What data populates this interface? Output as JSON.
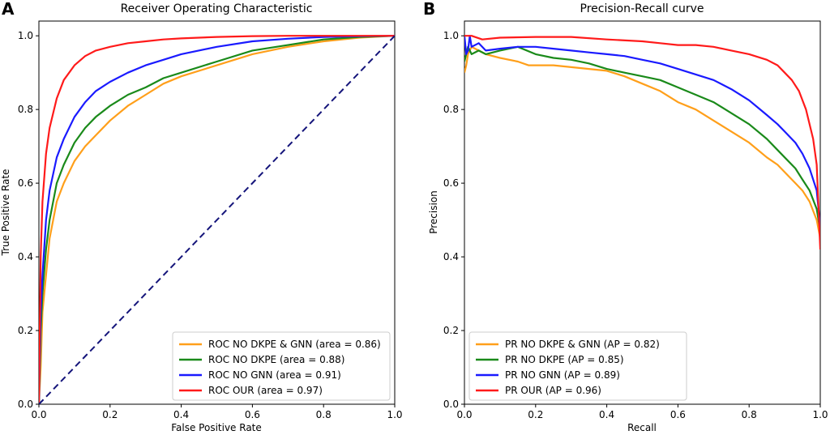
{
  "panels": [
    {
      "letter": "A",
      "title": "Receiver Operating Characteristic",
      "xlabel": "False Positive Rate",
      "ylabel": "True Positive Rate"
    },
    {
      "letter": "B",
      "title": "Precision-Recall curve",
      "xlabel": "Recall",
      "ylabel": "Precision"
    }
  ],
  "colors": {
    "orange": "#ff9f1a",
    "green": "#1a8a1a",
    "blue": "#1a1aff",
    "red": "#ff1a1a",
    "navy": "#14147a"
  },
  "chart_data": [
    {
      "type": "line",
      "title": "Receiver Operating Characteristic",
      "xlabel": "False Positive Rate",
      "ylabel": "True Positive Rate",
      "xlim": [
        0,
        1
      ],
      "ylim": [
        0,
        1.0
      ],
      "xticks": [
        "0.0",
        "0.2",
        "0.4",
        "0.6",
        "0.8",
        "1.0"
      ],
      "yticks": [
        "0.0",
        "0.2",
        "0.4",
        "0.6",
        "0.8",
        "1.0"
      ],
      "legend_position": "lower-right",
      "series": [
        {
          "name": "ROC NO DKPE & GNN (area = 0.86)",
          "color": "orange",
          "x": [
            0,
            0.005,
            0.01,
            0.02,
            0.03,
            0.05,
            0.07,
            0.1,
            0.13,
            0.16,
            0.2,
            0.25,
            0.3,
            0.35,
            0.4,
            0.5,
            0.6,
            0.7,
            0.8,
            0.9,
            1.0
          ],
          "y": [
            0,
            0.1,
            0.25,
            0.35,
            0.45,
            0.55,
            0.6,
            0.66,
            0.7,
            0.73,
            0.77,
            0.81,
            0.84,
            0.87,
            0.89,
            0.92,
            0.95,
            0.97,
            0.985,
            0.995,
            1.0
          ]
        },
        {
          "name": "ROC NO DKPE (area = 0.88)",
          "color": "green",
          "x": [
            0,
            0.005,
            0.01,
            0.02,
            0.03,
            0.05,
            0.07,
            0.1,
            0.13,
            0.16,
            0.2,
            0.25,
            0.3,
            0.35,
            0.4,
            0.5,
            0.6,
            0.7,
            0.8,
            0.9,
            1.0
          ],
          "y": [
            0,
            0.2,
            0.3,
            0.42,
            0.5,
            0.6,
            0.65,
            0.71,
            0.75,
            0.78,
            0.81,
            0.84,
            0.86,
            0.885,
            0.9,
            0.93,
            0.96,
            0.975,
            0.99,
            0.997,
            1.0
          ]
        },
        {
          "name": "ROC NO GNN (area = 0.91)",
          "color": "blue",
          "x": [
            0,
            0.005,
            0.01,
            0.02,
            0.03,
            0.05,
            0.07,
            0.1,
            0.13,
            0.16,
            0.2,
            0.25,
            0.3,
            0.35,
            0.4,
            0.5,
            0.6,
            0.7,
            0.8,
            0.9,
            1.0
          ],
          "y": [
            0,
            0.25,
            0.35,
            0.5,
            0.58,
            0.67,
            0.72,
            0.78,
            0.82,
            0.85,
            0.875,
            0.9,
            0.92,
            0.935,
            0.95,
            0.97,
            0.985,
            0.992,
            0.997,
            0.999,
            1.0
          ]
        },
        {
          "name": "ROC OUR (area = 0.97)",
          "color": "red",
          "x": [
            0,
            0.005,
            0.01,
            0.02,
            0.03,
            0.05,
            0.07,
            0.1,
            0.13,
            0.16,
            0.2,
            0.25,
            0.3,
            0.35,
            0.4,
            0.5,
            0.6,
            0.7,
            0.8,
            0.9,
            1.0
          ],
          "y": [
            0,
            0.4,
            0.55,
            0.68,
            0.75,
            0.83,
            0.88,
            0.92,
            0.945,
            0.96,
            0.97,
            0.98,
            0.985,
            0.99,
            0.993,
            0.997,
            0.999,
            1.0,
            1.0,
            1.0,
            1.0
          ]
        },
        {
          "name": "chance",
          "color": "navy",
          "dashed": true,
          "x": [
            0,
            1
          ],
          "y": [
            0,
            1
          ]
        }
      ]
    },
    {
      "type": "line",
      "title": "Precision-Recall curve",
      "xlabel": "Recall",
      "ylabel": "Precision",
      "xlim": [
        0,
        1
      ],
      "ylim": [
        0,
        1.0
      ],
      "xticks": [
        "0.0",
        "0.2",
        "0.4",
        "0.6",
        "0.8",
        "1.0"
      ],
      "yticks": [
        "0.0",
        "0.2",
        "0.4",
        "0.6",
        "0.8",
        "1.0"
      ],
      "legend_position": "lower-left",
      "series": [
        {
          "name": "PR NO DKPE & GNN (AP = 0.82)",
          "color": "orange",
          "x": [
            0,
            0.005,
            0.01,
            0.02,
            0.04,
            0.06,
            0.1,
            0.15,
            0.18,
            0.2,
            0.25,
            0.3,
            0.35,
            0.4,
            0.45,
            0.5,
            0.55,
            0.6,
            0.65,
            0.7,
            0.75,
            0.8,
            0.85,
            0.88,
            0.9,
            0.93,
            0.95,
            0.97,
            0.99,
            1.0
          ],
          "y": [
            0.9,
            0.92,
            0.95,
            0.97,
            0.96,
            0.95,
            0.94,
            0.93,
            0.92,
            0.92,
            0.92,
            0.915,
            0.91,
            0.905,
            0.89,
            0.87,
            0.85,
            0.82,
            0.8,
            0.77,
            0.74,
            0.71,
            0.67,
            0.65,
            0.63,
            0.6,
            0.58,
            0.55,
            0.5,
            0.45
          ]
        },
        {
          "name": "PR NO DKPE (AP = 0.85)",
          "color": "green",
          "x": [
            0,
            0.005,
            0.01,
            0.02,
            0.04,
            0.06,
            0.1,
            0.15,
            0.2,
            0.25,
            0.3,
            0.35,
            0.4,
            0.45,
            0.5,
            0.55,
            0.6,
            0.65,
            0.7,
            0.75,
            0.8,
            0.85,
            0.88,
            0.9,
            0.93,
            0.95,
            0.97,
            0.99,
            1.0
          ],
          "y": [
            0.93,
            0.95,
            0.97,
            0.95,
            0.96,
            0.95,
            0.96,
            0.97,
            0.95,
            0.94,
            0.935,
            0.925,
            0.91,
            0.9,
            0.89,
            0.88,
            0.86,
            0.84,
            0.82,
            0.79,
            0.76,
            0.72,
            0.69,
            0.67,
            0.64,
            0.61,
            0.58,
            0.53,
            0.47
          ]
        },
        {
          "name": "PR NO GNN (AP = 0.89)",
          "color": "blue",
          "x": [
            0,
            0.005,
            0.01,
            0.015,
            0.02,
            0.04,
            0.06,
            0.1,
            0.15,
            0.2,
            0.25,
            0.3,
            0.35,
            0.4,
            0.45,
            0.5,
            0.55,
            0.6,
            0.65,
            0.7,
            0.75,
            0.8,
            0.85,
            0.88,
            0.9,
            0.93,
            0.95,
            0.97,
            0.99,
            1.0
          ],
          "y": [
            1.0,
            0.95,
            0.96,
            1.0,
            0.97,
            0.98,
            0.96,
            0.965,
            0.97,
            0.97,
            0.965,
            0.96,
            0.955,
            0.95,
            0.945,
            0.935,
            0.925,
            0.91,
            0.895,
            0.88,
            0.855,
            0.825,
            0.785,
            0.76,
            0.74,
            0.71,
            0.68,
            0.64,
            0.58,
            0.48
          ]
        },
        {
          "name": "PR OUR (AP = 0.96)",
          "color": "red",
          "x": [
            0,
            0.01,
            0.02,
            0.05,
            0.1,
            0.2,
            0.3,
            0.4,
            0.5,
            0.55,
            0.6,
            0.65,
            0.7,
            0.75,
            0.8,
            0.85,
            0.88,
            0.9,
            0.92,
            0.94,
            0.96,
            0.98,
            0.99,
            1.0
          ],
          "y": [
            1.0,
            1.0,
            1.0,
            0.99,
            0.995,
            0.997,
            0.997,
            0.99,
            0.985,
            0.98,
            0.975,
            0.975,
            0.97,
            0.96,
            0.95,
            0.935,
            0.92,
            0.9,
            0.88,
            0.85,
            0.8,
            0.72,
            0.65,
            0.42
          ]
        }
      ]
    }
  ]
}
